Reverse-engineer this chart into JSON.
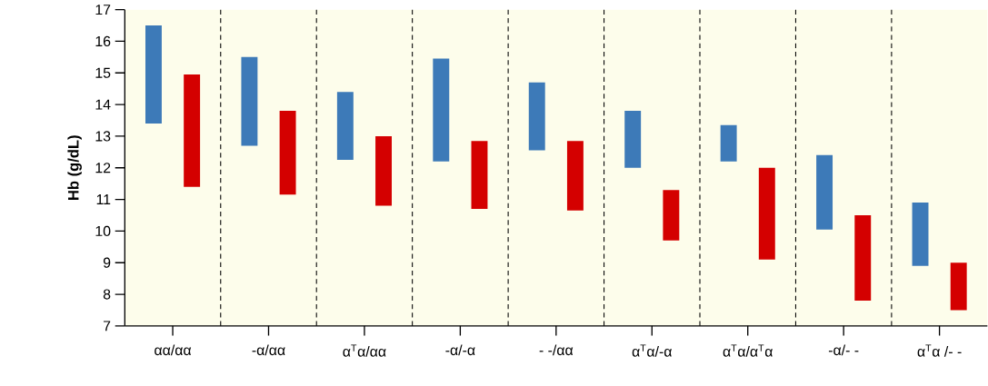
{
  "chart_data": {
    "type": "bar",
    "ylabel": "**Hb (g/dL)**",
    "categories": [
      "αα/αα",
      "-α/αα",
      "α$^{T}$α/αα",
      "-α/-α",
      "- -/αα",
      "α$^{T}$α/-α",
      "α$^{T}$α/α$^{T}$α",
      "-α/- -",
      "α$^{T}$α /- -"
    ],
    "series": [
      {
        "color": "#3d7ab8",
        "base": [
          13.4,
          12.7,
          12.25,
          12.2,
          12.55,
          12.0,
          12.2,
          10.05,
          8.9
        ],
        "values": [
          3.1,
          2.8,
          2.15,
          3.25,
          2.15,
          1.8,
          1.15,
          2.35,
          2.0
        ]
      },
      {
        "color": "#d40000",
        "base": [
          11.4,
          11.15,
          10.8,
          10.7,
          10.65,
          9.7,
          9.1,
          7.8,
          7.5
        ],
        "values": [
          3.55,
          2.65,
          2.2,
          2.15,
          2.2,
          1.6,
          2.9,
          2.7,
          1.5
        ]
      }
    ],
    "ylim": [
      7,
      17
    ],
    "yticks": [
      7,
      8,
      9,
      10,
      11,
      12,
      13,
      14,
      15,
      16,
      17
    ],
    "grid": "x"
  }
}
